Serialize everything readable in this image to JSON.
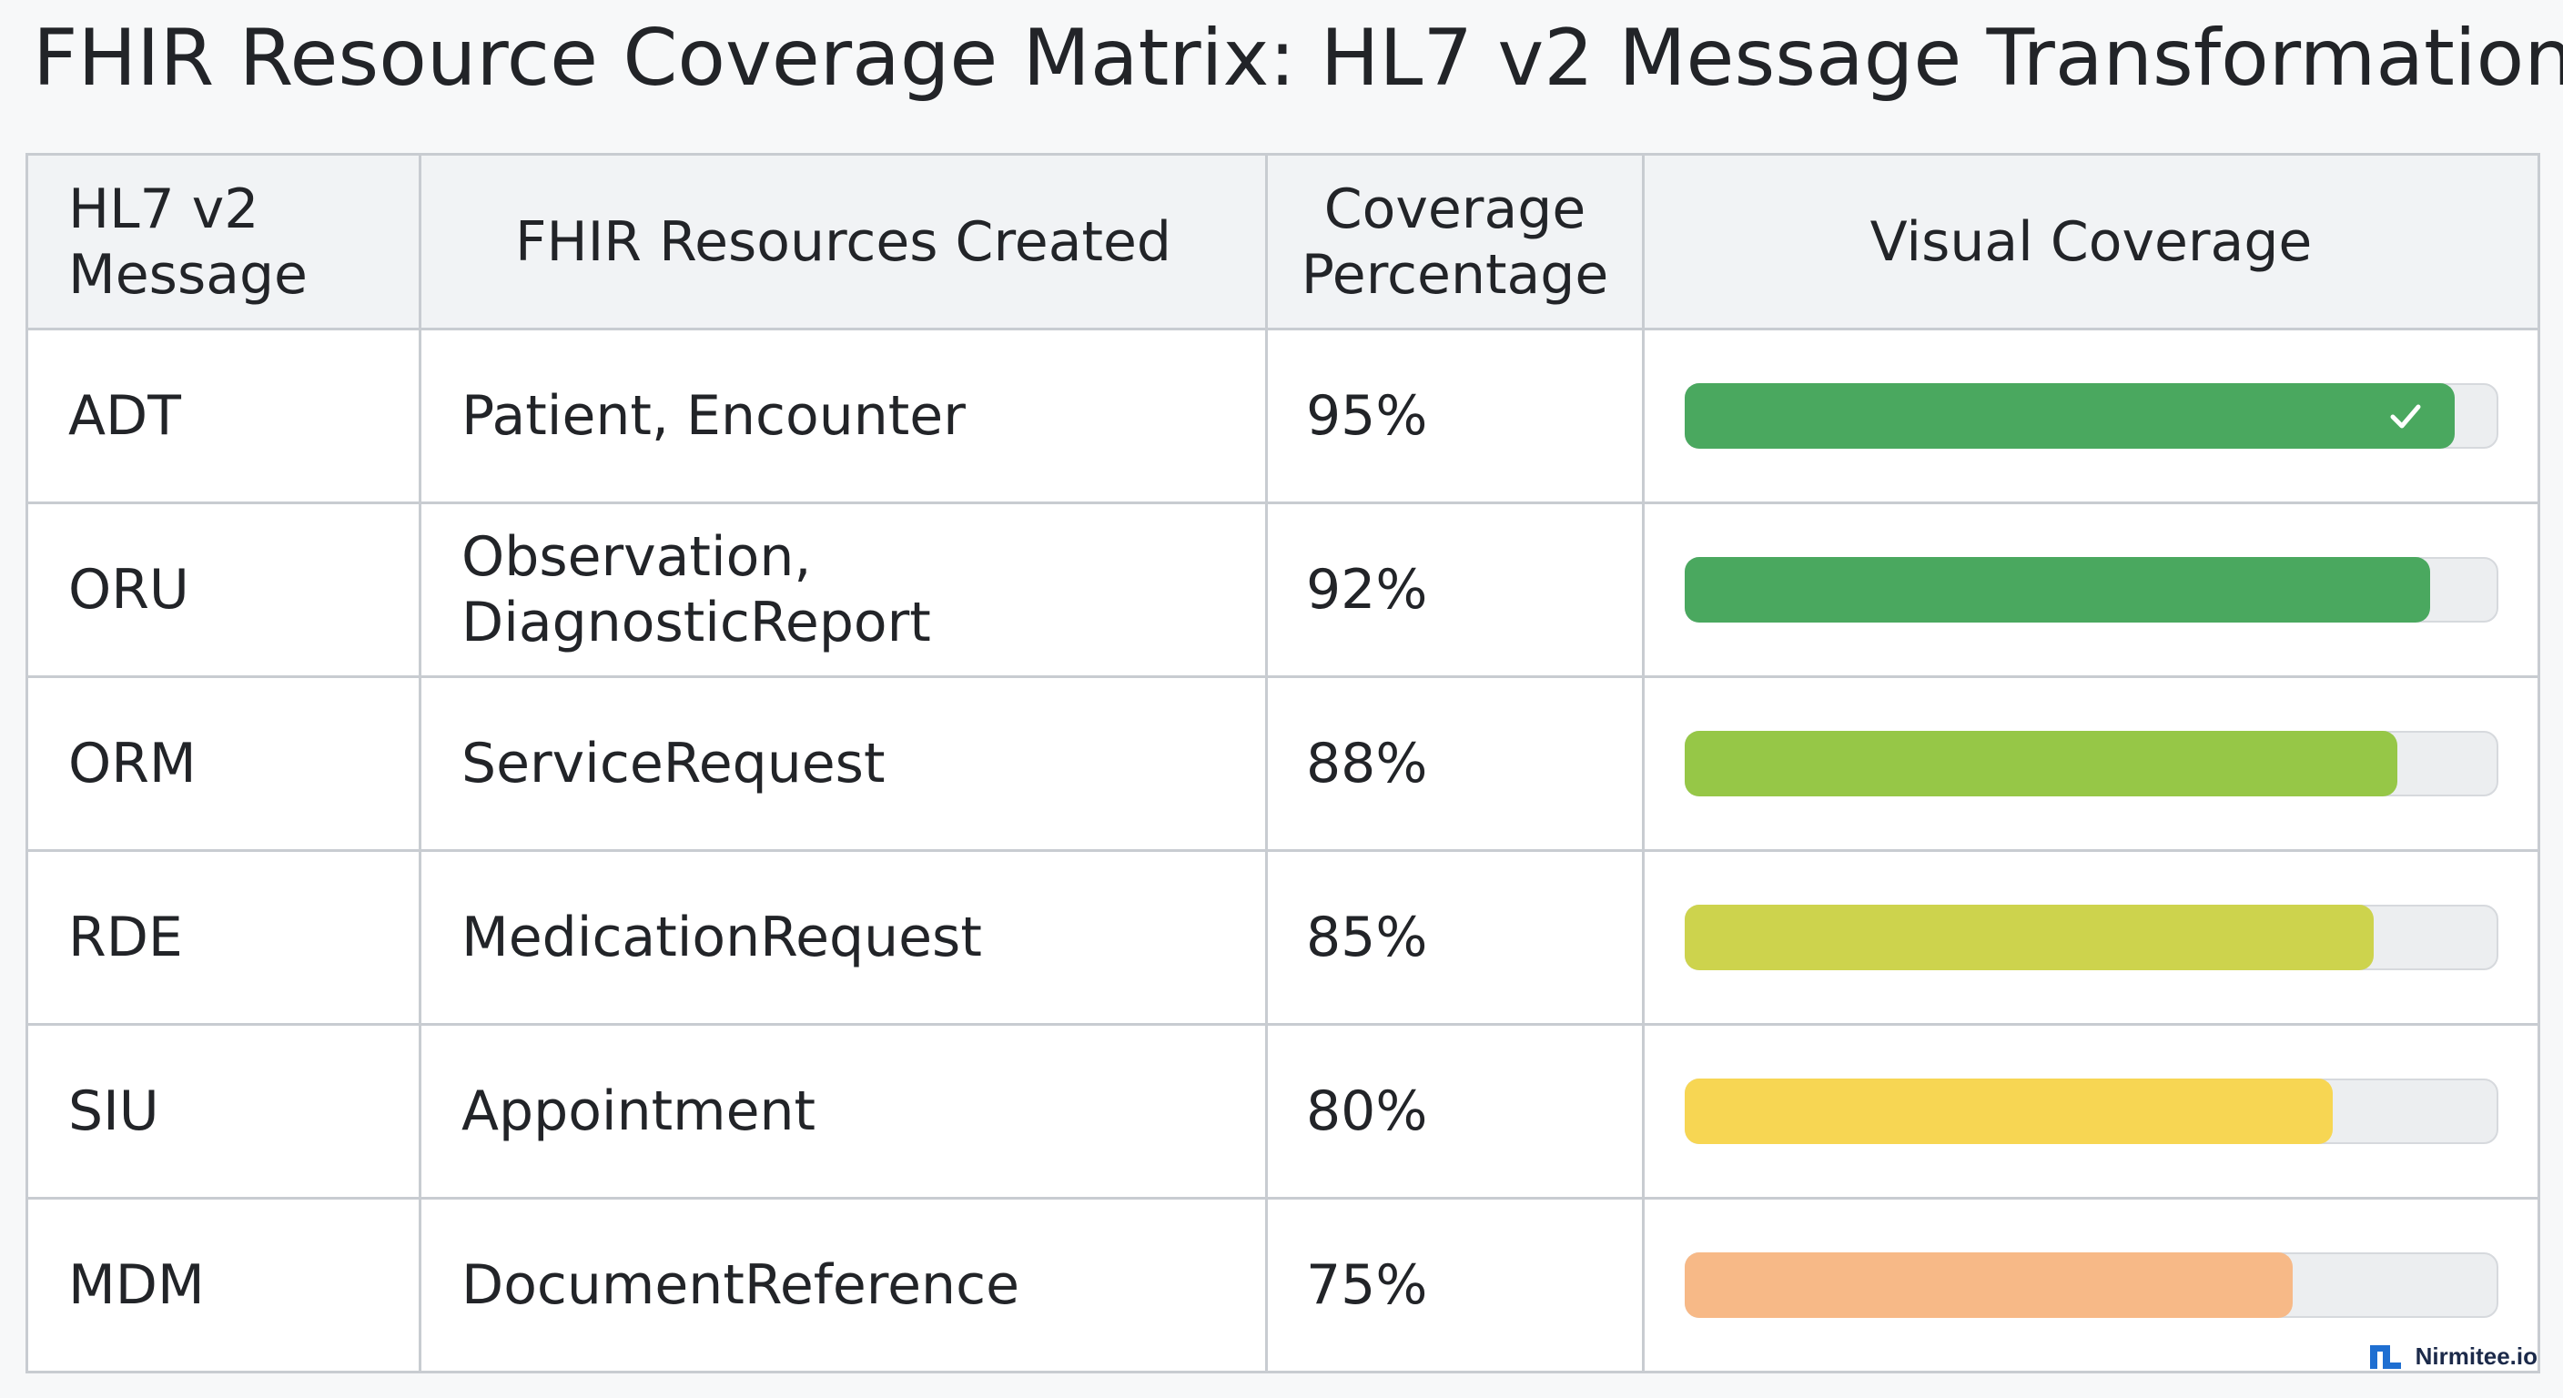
{
  "title": "FHIR Resource Coverage Matrix: HL7 v2 Message Transformation",
  "brand": {
    "name": "Nirmitee.io",
    "logo_icon": "nirmitee-logo-icon",
    "logo_color": "#1f6fd1"
  },
  "colors": {
    "header_bg": "#f1f3f5",
    "grid": "#c8ccd1",
    "track": "#eceef0"
  },
  "table": {
    "headers": {
      "message_line1": "HL7 v2",
      "message_line2": "Message",
      "resources": "FHIR Resources Created",
      "coverage_line1": "Coverage",
      "coverage_line2": "Percentage",
      "visual": "Visual Coverage"
    }
  },
  "chart_data": {
    "type": "table",
    "columns": [
      "HL7 v2 Message",
      "FHIR Resources Created",
      "Coverage Percentage",
      "Visual Coverage"
    ],
    "value_range": [
      0,
      100
    ],
    "rows": [
      {
        "message": "ADT",
        "resources": "Patient, Encounter",
        "coverage": 95,
        "coverage_label": "95%",
        "bar_color": "#4aa85f",
        "check": true,
        "check_icon": "checkmark-icon"
      },
      {
        "message": "ORU",
        "resources_line1": "Observation,",
        "resources_line2": "DiagnosticReport",
        "coverage": 92,
        "coverage_label": "92%",
        "bar_color": "#4aa85f",
        "check": false
      },
      {
        "message": "ORM",
        "resources": "ServiceRequest",
        "coverage": 88,
        "coverage_label": "88%",
        "bar_color": "#96c747",
        "check": false
      },
      {
        "message": "RDE",
        "resources": "MedicationRequest",
        "coverage": 85,
        "coverage_label": "85%",
        "bar_color": "#cdd34d",
        "check": false
      },
      {
        "message": "SIU",
        "resources": "Appointment",
        "coverage": 80,
        "coverage_label": "80%",
        "bar_color": "#f7d653",
        "check": false
      },
      {
        "message": "MDM",
        "resources": "DocumentReference",
        "coverage": 75,
        "coverage_label": "75%",
        "bar_color": "#f7b987",
        "check": false
      }
    ]
  }
}
